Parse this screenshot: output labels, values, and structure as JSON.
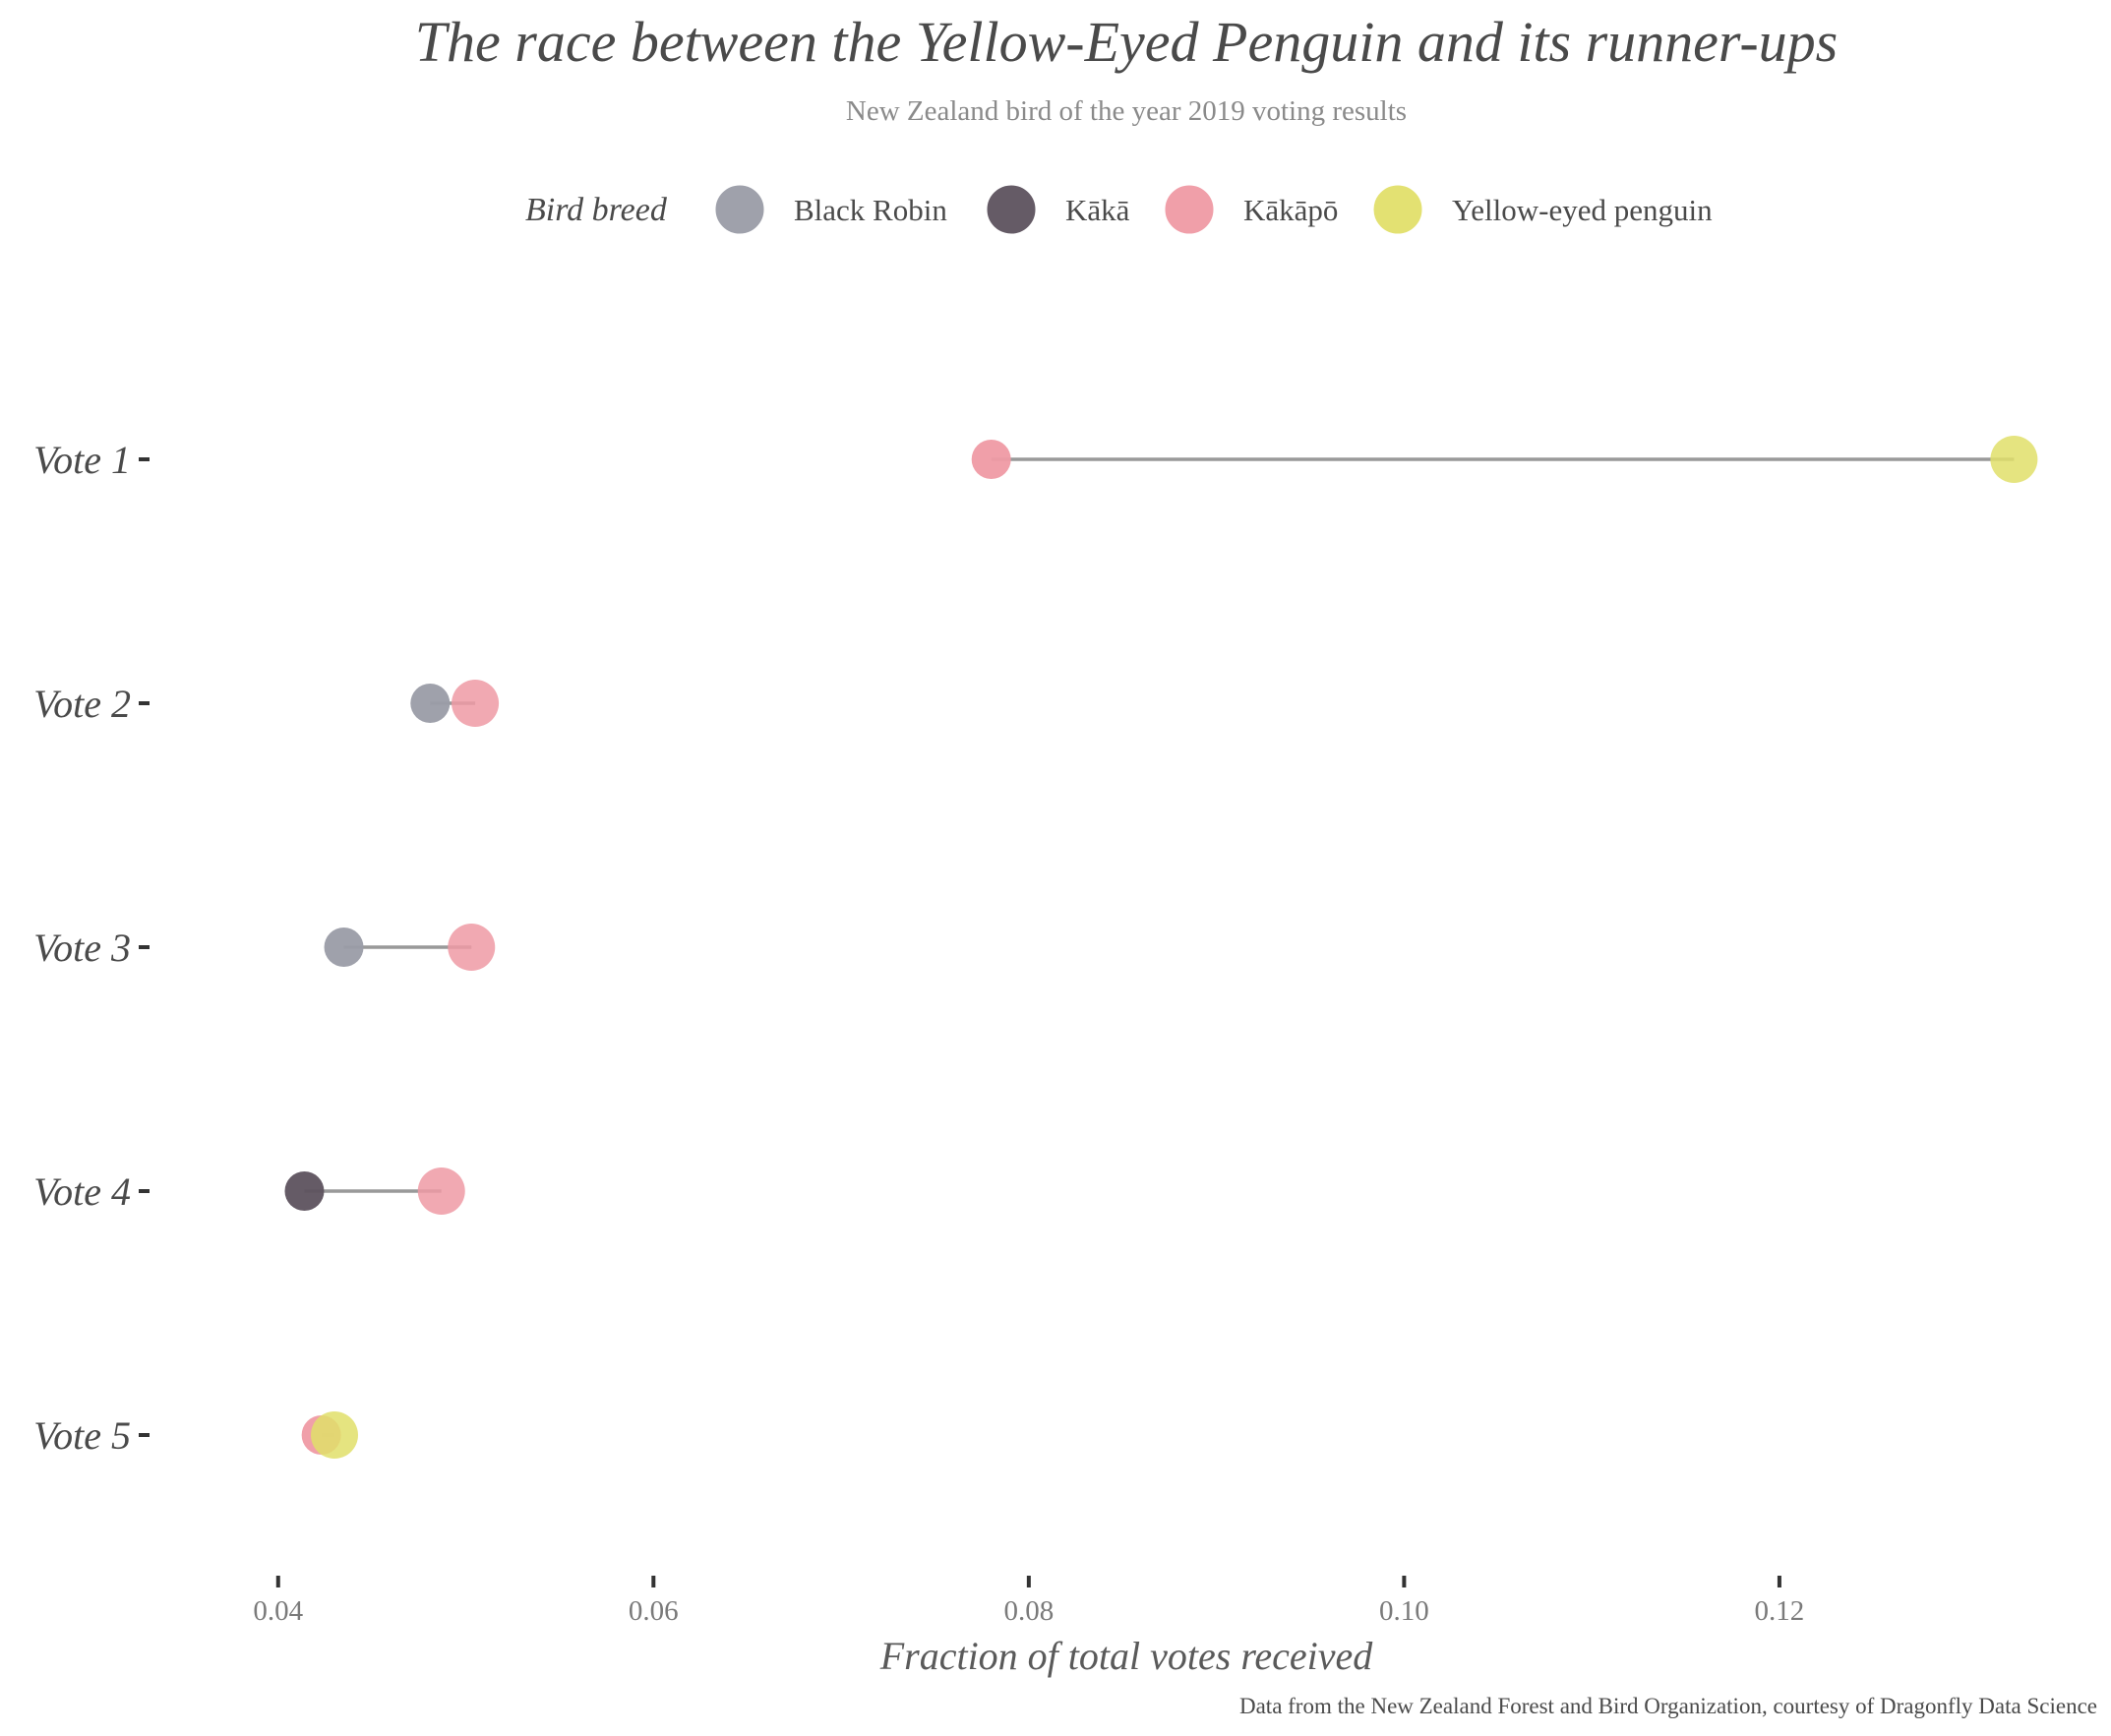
{
  "chart_data": {
    "type": "dumbbell",
    "title": "The race between the Yellow-Eyed Penguin and its runner-ups",
    "subtitle": "New Zealand bird of the year 2019 voting results",
    "xlabel": "Fraction of total votes received",
    "caption": "Data from the New Zealand Forest and Bird Organization, courtesy of Dragonfly Data Science",
    "legend": {
      "title": "Bird breed",
      "placement": "top",
      "entries": [
        {
          "name": "Black Robin",
          "color": "#9a9ca7"
        },
        {
          "name": "Kākā",
          "color": "#5d525e"
        },
        {
          "name": "Kākāpō",
          "color": "#ef9aa4"
        },
        {
          "name": "Yellow-eyed penguin",
          "color": "#e1df6a"
        }
      ]
    },
    "xlim": [
      0.0365,
      0.134
    ],
    "x_ticks": [
      "0.04",
      "0.06",
      "0.08",
      "0.10",
      "0.12"
    ],
    "x_tick_values": [
      0.04,
      0.06,
      0.08,
      0.1,
      0.12
    ],
    "categories": [
      "Vote 1",
      "Vote 2",
      "Vote 3",
      "Vote 4",
      "Vote 5"
    ],
    "rows": [
      {
        "label": "Vote 1",
        "start": {
          "bird": "Kākāpō",
          "value": 0.078
        },
        "end": {
          "bird": "Yellow-eyed penguin",
          "value": 0.1325
        }
      },
      {
        "label": "Vote 2",
        "start": {
          "bird": "Black Robin",
          "value": 0.0481
        },
        "end": {
          "bird": "Kākāpō",
          "value": 0.0505
        }
      },
      {
        "label": "Vote 3",
        "start": {
          "bird": "Black Robin",
          "value": 0.0435
        },
        "end": {
          "bird": "Kākāpō",
          "value": 0.0503
        }
      },
      {
        "label": "Vote 4",
        "start": {
          "bird": "Kākā",
          "value": 0.0414
        },
        "end": {
          "bird": "Kākāpō",
          "value": 0.0487
        }
      },
      {
        "label": "Vote 5",
        "start": {
          "bird": "Kākāpō",
          "value": 0.0423
        },
        "end": {
          "bird": "Yellow-eyed penguin",
          "value": 0.043
        }
      }
    ],
    "grid": false,
    "segment_color": "#999999"
  }
}
